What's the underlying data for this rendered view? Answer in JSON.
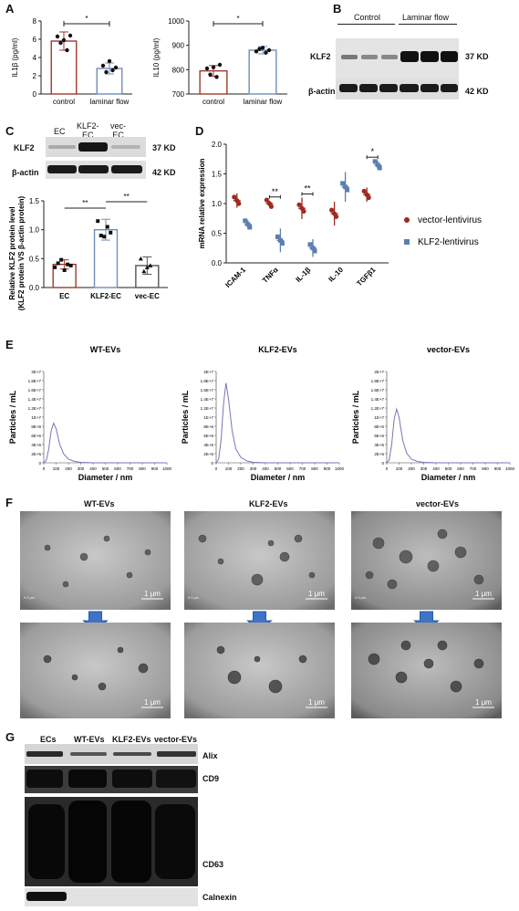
{
  "panels": {
    "A": "A",
    "B": "B",
    "C": "C",
    "D": "D",
    "E": "E",
    "F": "F",
    "G": "G"
  },
  "panelA": {
    "chart_data": [
      {
        "type": "bar",
        "ylabel": "IL1β (pg/ml)",
        "categories": [
          "control",
          "laminar flow"
        ],
        "values": [
          5.8,
          2.8
        ],
        "errors": [
          1.0,
          0.6
        ],
        "ylim": [
          0,
          8
        ],
        "yticks": [
          "0",
          "2",
          "4",
          "6",
          "8"
        ],
        "points": [
          [
            6.3,
            5.6,
            5.9,
            4.8,
            6.4
          ],
          [
            3.1,
            2.4,
            3.6,
            2.6,
            2.9
          ]
        ],
        "significance": "*",
        "colors": [
          "#9e3a2b",
          "#6f8fb5"
        ]
      },
      {
        "type": "bar",
        "ylabel": "IL10 (pg/ml)",
        "categories": [
          "control",
          "laminar flow"
        ],
        "values": [
          795,
          880
        ],
        "errors": [
          22,
          15
        ],
        "ylim": [
          700,
          1000
        ],
        "yticks": [
          "700",
          "800",
          "900",
          "1000"
        ],
        "points": [
          [
            805,
            780,
            810,
            770,
            820
          ],
          [
            875,
            885,
            890,
            870,
            880
          ]
        ],
        "significance": "*",
        "colors": [
          "#9e3a2b",
          "#6f8fb5"
        ]
      }
    ]
  },
  "panelB": {
    "control": "Control",
    "laminar": "Laminar flow",
    "row1": "KLF2",
    "row2": "β-actin",
    "kd1": "37 KD",
    "kd2": "42 KD"
  },
  "panelC": {
    "lanes": [
      "EC",
      "KLF2-\nEC",
      "vec-\nEC"
    ],
    "lane_labels": [
      "EC",
      "KLF2-EC",
      "vec-EC"
    ],
    "row1": "KLF2",
    "row2": "β-actin",
    "kd1": "37 KD",
    "kd2": "42 KD",
    "chart_data": {
      "type": "bar",
      "ylabel": "Relative KLF2 protein level",
      "ylabel2": "(KLF2 protein VS β-actin protein)",
      "categories": [
        "EC",
        "KLF2-EC",
        "vec-EC"
      ],
      "values": [
        0.4,
        1.0,
        0.38
      ],
      "errors": [
        0.08,
        0.18,
        0.15
      ],
      "ylim": [
        0,
        1.5
      ],
      "yticks": [
        "0.0",
        "0.5",
        "1.0",
        "1.5"
      ],
      "significance": [
        "**",
        "**"
      ],
      "colors": [
        "#9e3a2b",
        "#6f8fb5",
        "#555555"
      ]
    }
  },
  "panelD": {
    "chart_data": {
      "type": "scatter",
      "ylabel": "mRNA relative expression",
      "categories": [
        "ICAM-1",
        "TNFα",
        "IL-1β",
        "IL-10",
        "TGFβ1"
      ],
      "ylim": [
        0,
        2
      ],
      "yticks": [
        "0.0",
        "0.5",
        "1.0",
        "1.5",
        "2.0"
      ],
      "series": [
        {
          "name": "vector-lentivirus",
          "values": [
            1.05,
            1.0,
            0.92,
            0.83,
            1.15
          ],
          "errors": [
            0.12,
            0.05,
            0.18,
            0.2,
            0.12
          ],
          "color": "#9e2a20"
        },
        {
          "name": "KLF2-lentivirus",
          "values": [
            0.65,
            0.38,
            0.25,
            1.28,
            1.65
          ],
          "errors": [
            0.07,
            0.2,
            0.15,
            0.25,
            0.07
          ],
          "color": "#5b7fae"
        }
      ],
      "significance": [
        "",
        "**",
        "**",
        "",
        "*"
      ]
    }
  },
  "panelE": {
    "xlabel": "Diameter / nm",
    "ylabel": "Particles / mL",
    "yticks": [
      "0",
      "2E+6",
      "4E+6",
      "6E+6",
      "8E+6",
      "1E+7",
      "1.2E+7",
      "1.4E+7",
      "1.6E+7",
      "1.8E+7",
      "2E+7"
    ],
    "xticks": [
      "0",
      "100",
      "200",
      "300",
      "400",
      "500",
      "600",
      "700",
      "800",
      "900",
      "1000"
    ],
    "chart_data": [
      {
        "type": "line",
        "title": "WT-EVs",
        "x": [
          0,
          20,
          40,
          60,
          80,
          100,
          130,
          160,
          200,
          250,
          300,
          400,
          600,
          1000
        ],
        "y": [
          0,
          0.5,
          3,
          7,
          8.7,
          7.5,
          4,
          2,
          0.8,
          0.3,
          0.1,
          0,
          0,
          0
        ]
      },
      {
        "type": "line",
        "title": "KLF2-EVs",
        "x": [
          0,
          20,
          40,
          60,
          80,
          100,
          130,
          160,
          200,
          250,
          300,
          400,
          600,
          1000
        ],
        "y": [
          0,
          0.8,
          5,
          13,
          17.5,
          14,
          7,
          3,
          1.2,
          0.4,
          0.1,
          0,
          0,
          0
        ]
      },
      {
        "type": "line",
        "title": "vector-EVs",
        "x": [
          0,
          20,
          40,
          60,
          80,
          100,
          130,
          160,
          200,
          250,
          300,
          400,
          600,
          1000
        ],
        "y": [
          0,
          0.6,
          4,
          9.5,
          11.8,
          10,
          5,
          2.2,
          0.8,
          0.3,
          0.1,
          0,
          0,
          0
        ]
      }
    ]
  },
  "panelF": {
    "titles": [
      "WT-EVs",
      "KLF2-EVs",
      "vector-EVs"
    ],
    "scale": "1 μm",
    "small": "0.5 μm"
  },
  "panelG": {
    "lanes": [
      "ECs",
      "WT-EVs",
      "KLF2-EVs",
      "vector-EVs"
    ],
    "rows": [
      "Alix",
      "CD9",
      "CD63",
      "Calnexin"
    ]
  }
}
